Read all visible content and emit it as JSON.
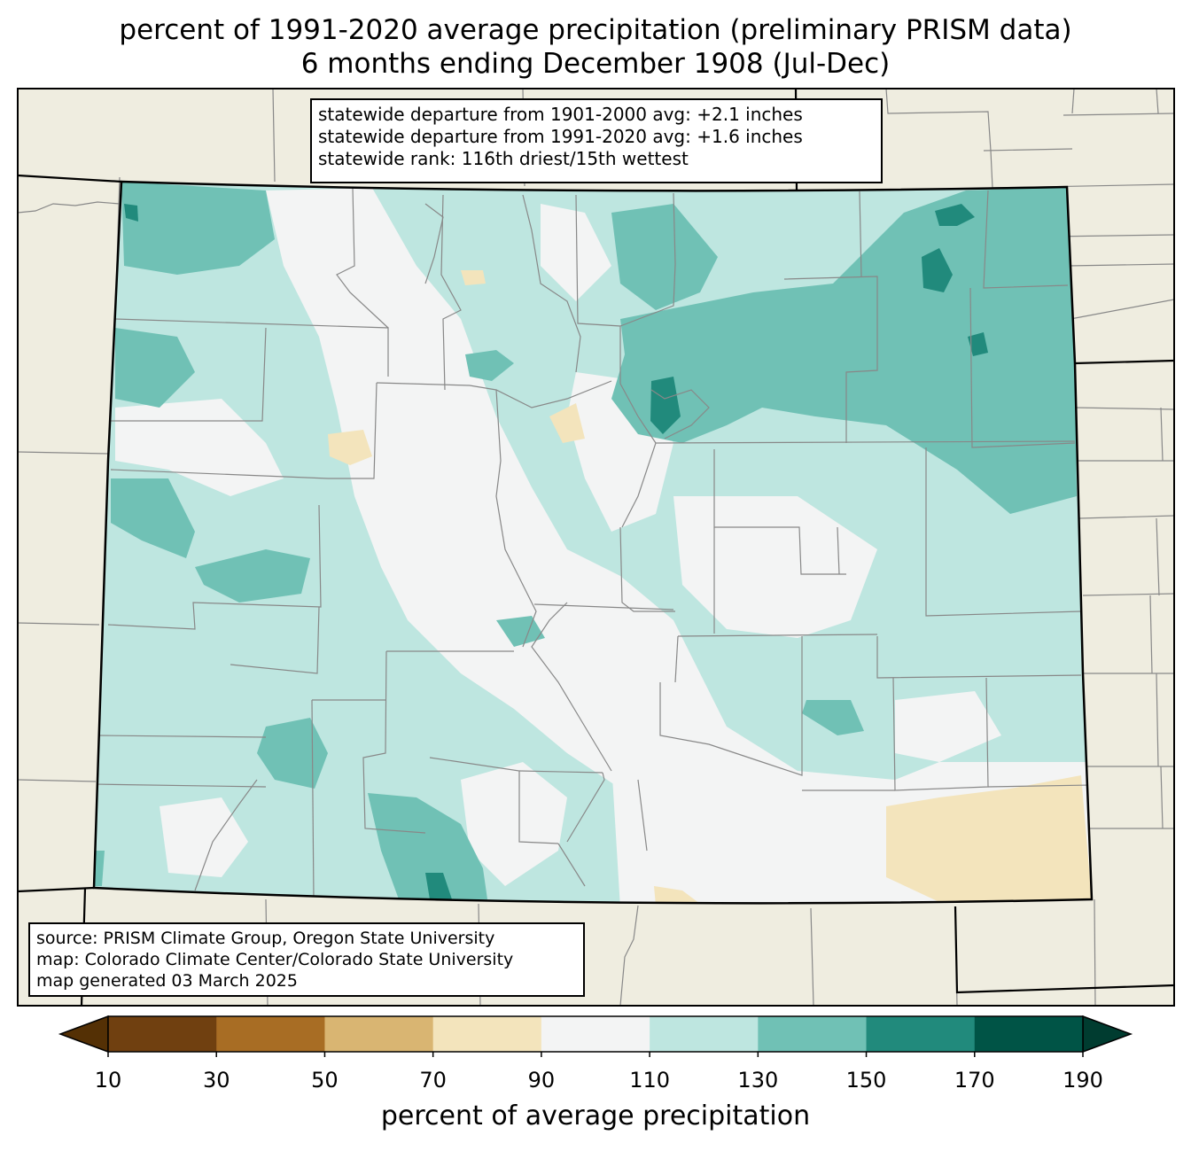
{
  "title": {
    "line1": "percent of 1991-2020 average precipitation (preliminary PRISM data)",
    "line2": "6 months ending December 1908 (Jul-Dec)"
  },
  "stats": {
    "line1": "statewide departure from 1901-2000 avg: +2.1 inches",
    "line2": "statewide departure from 1991-2020 avg: +1.6 inches",
    "line3": "statewide rank: 116th driest/15th wettest"
  },
  "credits": {
    "line1": "source: PRISM Climate Group, Oregon State University",
    "line2": "map: Colorado Climate Center/Colorado State University",
    "line3": "map generated 03 March 2025"
  },
  "colorbar": {
    "label": "percent of average precipitation",
    "ticks": [
      "10",
      "30",
      "50",
      "70",
      "90",
      "110",
      "130",
      "150",
      "170",
      "190"
    ],
    "bins": [
      {
        "range": "10-30",
        "color": "#704010"
      },
      {
        "range": "30-50",
        "color": "#a86d24"
      },
      {
        "range": "50-70",
        "color": "#d9b572"
      },
      {
        "range": "70-90",
        "color": "#f3e4bc"
      },
      {
        "range": "90-110",
        "color": "#f3f4f4"
      },
      {
        "range": "110-130",
        "color": "#bee6e0"
      },
      {
        "range": "130-150",
        "color": "#70c1b5"
      },
      {
        "range": "150-170",
        "color": "#218a7c"
      },
      {
        "range": "170-190",
        "color": "#005446"
      }
    ],
    "under_color": "#543005",
    "over_color": "#003c30"
  },
  "colors": {
    "land_outside": "#efede0",
    "county_lines": "#888888",
    "state_lines": "#000000"
  }
}
